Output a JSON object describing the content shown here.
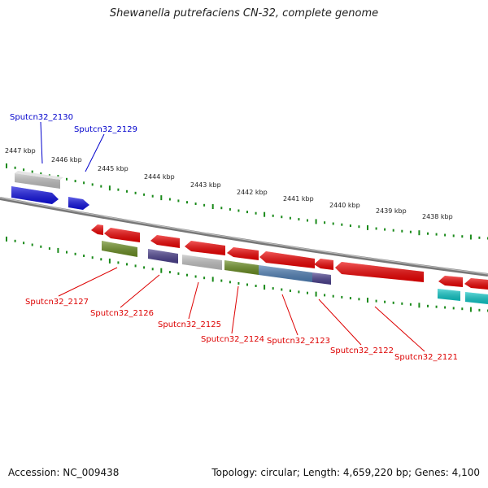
{
  "title": "Shewanella putrefaciens CN-32, complete genome",
  "footer": {
    "accession": "Accession: NC_009438",
    "stats": "Topology: circular; Length: 4,659,220 bp; Genes: 4,100"
  },
  "kbp_labels": [
    "2447 kbp",
    "2446 kbp",
    "2445 kbp",
    "2444 kbp",
    "2443 kbp",
    "2442 kbp",
    "2441 kbp",
    "2440 kbp",
    "2439 kbp",
    "2438 kbp"
  ],
  "colors": {
    "backbone": "#888888",
    "tick": "#1a8a1a",
    "forward_label": "#0000cc",
    "reverse_label": "#dd0000"
  },
  "forward_genes": [
    {
      "name": "Sputcn32_2130",
      "color": "#c0c0c0"
    },
    {
      "name": "Sputcn32_2129",
      "color": "#1010e0"
    }
  ],
  "reverse_genes": [
    {
      "name": "Sputcn32_2127",
      "color": "#6b8e23"
    },
    {
      "name": "Sputcn32_2126",
      "color": "#4a3f8c"
    },
    {
      "name": "Sputcn32_2125",
      "color": "#c0c0c0"
    },
    {
      "name": "Sputcn32_2124",
      "color": "#6b8e23"
    },
    {
      "name": "Sputcn32_2123",
      "color": "#4f7fb5"
    },
    {
      "name": "Sputcn32_2122",
      "color": "#ee0000"
    },
    {
      "name": "Sputcn32_2121",
      "color": "#ee0000"
    }
  ],
  "other_gene_colors": {
    "red": "#ee0000",
    "cyan": "#10c8c8",
    "purple": "#4a3f8c"
  }
}
